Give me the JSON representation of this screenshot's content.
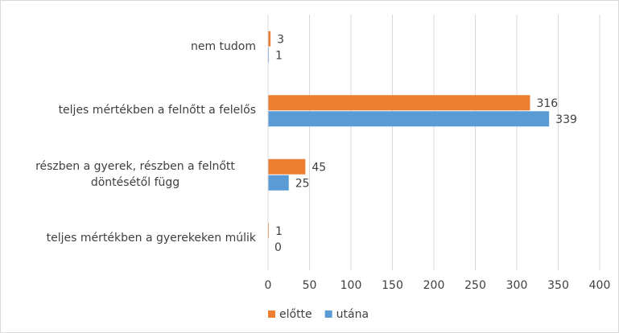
{
  "chart_data": {
    "type": "bar",
    "orientation": "horizontal",
    "categories": [
      "nem tudom",
      "teljes mértékben a felnőtt a felelős",
      "részben a gyerek, részben a felnőtt döntésétől függ",
      "teljes mértékben a gyerekeken múlik"
    ],
    "series": [
      {
        "name": "előtte",
        "color": "#ed7d31",
        "values": [
          3,
          316,
          45,
          1
        ]
      },
      {
        "name": "utána",
        "color": "#5b9bd5",
        "values": [
          1,
          339,
          25,
          0
        ]
      }
    ],
    "xlim": [
      0,
      400
    ],
    "xticks": [
      0,
      50,
      100,
      150,
      200,
      250,
      300,
      350,
      400
    ],
    "grid": true,
    "legend": "bottom"
  }
}
